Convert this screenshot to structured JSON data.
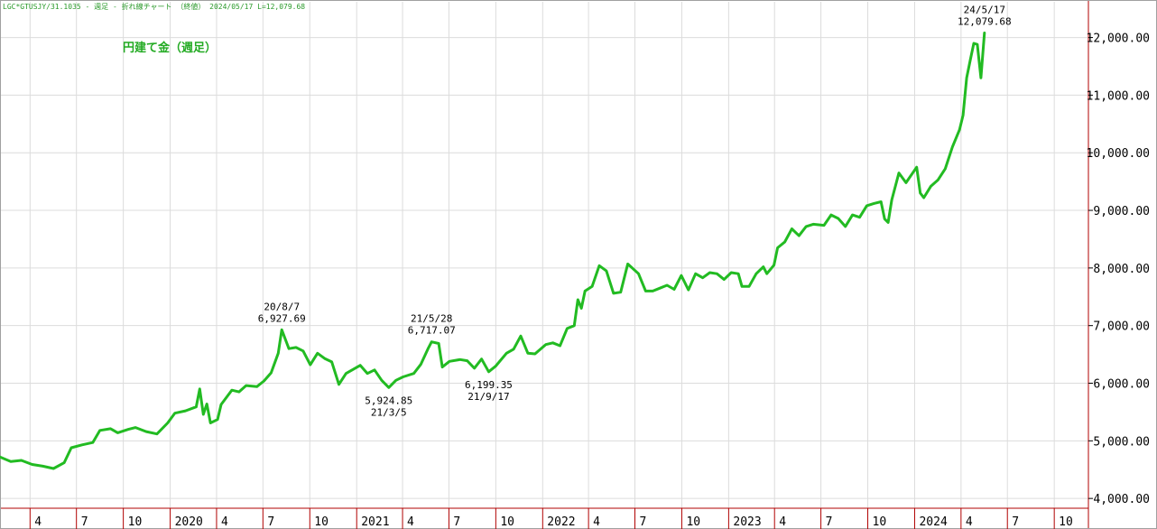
{
  "header": {
    "text": "LGC*GTUSJY/31.1035 - 週足 - 折れ線チャート （終値） 2024/05/17 L=12,079.68"
  },
  "colors": {
    "line": "#22bb22",
    "grid": "#dcdcdc",
    "frame": "#b00000",
    "title": "#22aa22"
  },
  "chart_data": {
    "type": "line",
    "title": "円建て金（週足）",
    "xlabel": "",
    "ylabel": "",
    "ylim": [
      3830,
      12620
    ],
    "y_ticks": [
      4000,
      5000,
      6000,
      7000,
      8000,
      9000,
      10000,
      11000,
      12000
    ],
    "y_tick_labels": [
      "4,000.00",
      "5,000.00",
      "6,000.00",
      "7,000.00",
      "8,000.00",
      "9,000.00",
      "10,000.00",
      "11,000.00",
      "12,000.00"
    ],
    "x_ticks": [
      {
        "label": "4",
        "date": "2019-04-01"
      },
      {
        "label": "7",
        "date": "2019-07-01"
      },
      {
        "label": "10",
        "date": "2019-10-01"
      },
      {
        "label": "2020",
        "date": "2020-01-01"
      },
      {
        "label": "4",
        "date": "2020-04-01"
      },
      {
        "label": "7",
        "date": "2020-07-01"
      },
      {
        "label": "10",
        "date": "2020-10-01"
      },
      {
        "label": "2021",
        "date": "2021-01-01"
      },
      {
        "label": "4",
        "date": "2021-04-01"
      },
      {
        "label": "7",
        "date": "2021-07-01"
      },
      {
        "label": "10",
        "date": "2021-10-01"
      },
      {
        "label": "2022",
        "date": "2022-01-01"
      },
      {
        "label": "4",
        "date": "2022-04-01"
      },
      {
        "label": "7",
        "date": "2022-07-01"
      },
      {
        "label": "10",
        "date": "2022-10-01"
      },
      {
        "label": "2023",
        "date": "2023-01-01"
      },
      {
        "label": "4",
        "date": "2023-04-01"
      },
      {
        "label": "7",
        "date": "2023-07-01"
      },
      {
        "label": "10",
        "date": "2023-10-01"
      },
      {
        "label": "2024",
        "date": "2024-01-01"
      },
      {
        "label": "4",
        "date": "2024-04-01"
      },
      {
        "label": "7",
        "date": "2024-07-01"
      },
      {
        "label": "10",
        "date": "2024-10-01"
      }
    ],
    "xlim": [
      "2019-02-01",
      "2024-12-07"
    ],
    "series": [
      {
        "points": [
          [
            "2019-02-01",
            4720
          ],
          [
            "2019-02-22",
            4640
          ],
          [
            "2019-03-15",
            4660
          ],
          [
            "2019-04-05",
            4590
          ],
          [
            "2019-04-26",
            4560
          ],
          [
            "2019-05-17",
            4520
          ],
          [
            "2019-06-07",
            4620
          ],
          [
            "2019-06-21",
            4880
          ],
          [
            "2019-07-12",
            4930
          ],
          [
            "2019-08-02",
            4970
          ],
          [
            "2019-08-16",
            5180
          ],
          [
            "2019-09-06",
            5210
          ],
          [
            "2019-09-20",
            5140
          ],
          [
            "2019-10-11",
            5200
          ],
          [
            "2019-10-25",
            5230
          ],
          [
            "2019-11-15",
            5160
          ],
          [
            "2019-12-06",
            5120
          ],
          [
            "2019-12-27",
            5310
          ],
          [
            "2020-01-10",
            5480
          ],
          [
            "2020-01-31",
            5520
          ],
          [
            "2020-02-21",
            5590
          ],
          [
            "2020-02-28",
            5900
          ],
          [
            "2020-03-06",
            5460
          ],
          [
            "2020-03-13",
            5640
          ],
          [
            "2020-03-20",
            5310
          ],
          [
            "2020-04-03",
            5370
          ],
          [
            "2020-04-10",
            5630
          ],
          [
            "2020-05-01",
            5880
          ],
          [
            "2020-05-15",
            5850
          ],
          [
            "2020-05-29",
            5960
          ],
          [
            "2020-06-19",
            5940
          ],
          [
            "2020-07-03",
            6040
          ],
          [
            "2020-07-17",
            6180
          ],
          [
            "2020-07-31",
            6520
          ],
          [
            "2020-08-07",
            6927.69
          ],
          [
            "2020-08-21",
            6600
          ],
          [
            "2020-09-04",
            6620
          ],
          [
            "2020-09-18",
            6560
          ],
          [
            "2020-10-02",
            6320
          ],
          [
            "2020-10-16",
            6520
          ],
          [
            "2020-10-30",
            6430
          ],
          [
            "2020-11-13",
            6370
          ],
          [
            "2020-11-27",
            5980
          ],
          [
            "2020-12-11",
            6170
          ],
          [
            "2020-12-25",
            6240
          ],
          [
            "2021-01-08",
            6310
          ],
          [
            "2021-01-22",
            6170
          ],
          [
            "2021-02-05",
            6230
          ],
          [
            "2021-02-19",
            6050
          ],
          [
            "2021-03-05",
            5924.85
          ],
          [
            "2021-03-19",
            6050
          ],
          [
            "2021-04-02",
            6110
          ],
          [
            "2021-04-23",
            6170
          ],
          [
            "2021-05-07",
            6330
          ],
          [
            "2021-05-21",
            6600
          ],
          [
            "2021-05-28",
            6717.07
          ],
          [
            "2021-06-11",
            6690
          ],
          [
            "2021-06-18",
            6280
          ],
          [
            "2021-07-02",
            6380
          ],
          [
            "2021-07-23",
            6410
          ],
          [
            "2021-08-06",
            6390
          ],
          [
            "2021-08-20",
            6260
          ],
          [
            "2021-09-03",
            6420
          ],
          [
            "2021-09-17",
            6199.35
          ],
          [
            "2021-10-01",
            6300
          ],
          [
            "2021-10-22",
            6520
          ],
          [
            "2021-11-05",
            6590
          ],
          [
            "2021-11-19",
            6820
          ],
          [
            "2021-12-03",
            6520
          ],
          [
            "2021-12-17",
            6510
          ],
          [
            "2022-01-07",
            6670
          ],
          [
            "2022-01-21",
            6700
          ],
          [
            "2022-02-04",
            6650
          ],
          [
            "2022-02-18",
            6950
          ],
          [
            "2022-03-04",
            7000
          ],
          [
            "2022-03-11",
            7450
          ],
          [
            "2022-03-18",
            7300
          ],
          [
            "2022-03-25",
            7600
          ],
          [
            "2022-04-08",
            7680
          ],
          [
            "2022-04-22",
            8040
          ],
          [
            "2022-05-06",
            7950
          ],
          [
            "2022-05-20",
            7560
          ],
          [
            "2022-06-03",
            7580
          ],
          [
            "2022-06-17",
            8070
          ],
          [
            "2022-07-08",
            7900
          ],
          [
            "2022-07-22",
            7600
          ],
          [
            "2022-08-05",
            7600
          ],
          [
            "2022-08-19",
            7650
          ],
          [
            "2022-09-02",
            7700
          ],
          [
            "2022-09-16",
            7630
          ],
          [
            "2022-09-30",
            7870
          ],
          [
            "2022-10-14",
            7620
          ],
          [
            "2022-10-28",
            7900
          ],
          [
            "2022-11-11",
            7830
          ],
          [
            "2022-11-25",
            7920
          ],
          [
            "2022-12-09",
            7900
          ],
          [
            "2022-12-23",
            7800
          ],
          [
            "2023-01-06",
            7920
          ],
          [
            "2023-01-20",
            7900
          ],
          [
            "2023-01-27",
            7680
          ],
          [
            "2023-02-10",
            7680
          ],
          [
            "2023-02-24",
            7900
          ],
          [
            "2023-03-10",
            8020
          ],
          [
            "2023-03-17",
            7900
          ],
          [
            "2023-03-31",
            8050
          ],
          [
            "2023-04-07",
            8350
          ],
          [
            "2023-04-21",
            8450
          ],
          [
            "2023-05-05",
            8680
          ],
          [
            "2023-05-19",
            8560
          ],
          [
            "2023-06-02",
            8720
          ],
          [
            "2023-06-16",
            8760
          ],
          [
            "2023-07-07",
            8740
          ],
          [
            "2023-07-21",
            8920
          ],
          [
            "2023-08-04",
            8860
          ],
          [
            "2023-08-18",
            8720
          ],
          [
            "2023-09-01",
            8920
          ],
          [
            "2023-09-15",
            8880
          ],
          [
            "2023-09-29",
            9080
          ],
          [
            "2023-10-13",
            9120
          ],
          [
            "2023-10-27",
            9150
          ],
          [
            "2023-11-03",
            8850
          ],
          [
            "2023-11-10",
            8790
          ],
          [
            "2023-11-17",
            9180
          ],
          [
            "2023-12-01",
            9650
          ],
          [
            "2023-12-15",
            9480
          ],
          [
            "2024-01-05",
            9750
          ],
          [
            "2024-01-12",
            9300
          ],
          [
            "2024-01-19",
            9220
          ],
          [
            "2024-02-02",
            9420
          ],
          [
            "2024-02-16",
            9530
          ],
          [
            "2024-03-01",
            9720
          ],
          [
            "2024-03-15",
            10100
          ],
          [
            "2024-03-29",
            10400
          ],
          [
            "2024-04-05",
            10650
          ],
          [
            "2024-04-12",
            11300
          ],
          [
            "2024-04-19",
            11600
          ],
          [
            "2024-04-26",
            11900
          ],
          [
            "2024-05-03",
            11880
          ],
          [
            "2024-05-10",
            11300
          ],
          [
            "2024-05-17",
            12079.68
          ]
        ]
      }
    ],
    "annotations": [
      {
        "date": "2020-08-07",
        "value": 6927.69,
        "label_date": "20/8/7",
        "label_value": "6,927.69",
        "pos": "above"
      },
      {
        "date": "2021-03-05",
        "value": 5924.85,
        "label_date": "21/3/5",
        "label_value": "5,924.85",
        "pos": "below"
      },
      {
        "date": "2021-05-28",
        "value": 6717.07,
        "label_date": "21/5/28",
        "label_value": "6,717.07",
        "pos": "above"
      },
      {
        "date": "2021-09-17",
        "value": 6199.35,
        "label_date": "21/9/17",
        "label_value": "6,199.35",
        "pos": "below"
      },
      {
        "date": "2024-05-17",
        "value": 12079.68,
        "label_date": "24/5/17",
        "label_value": "12,079.68",
        "pos": "above"
      }
    ],
    "grid": true
  }
}
